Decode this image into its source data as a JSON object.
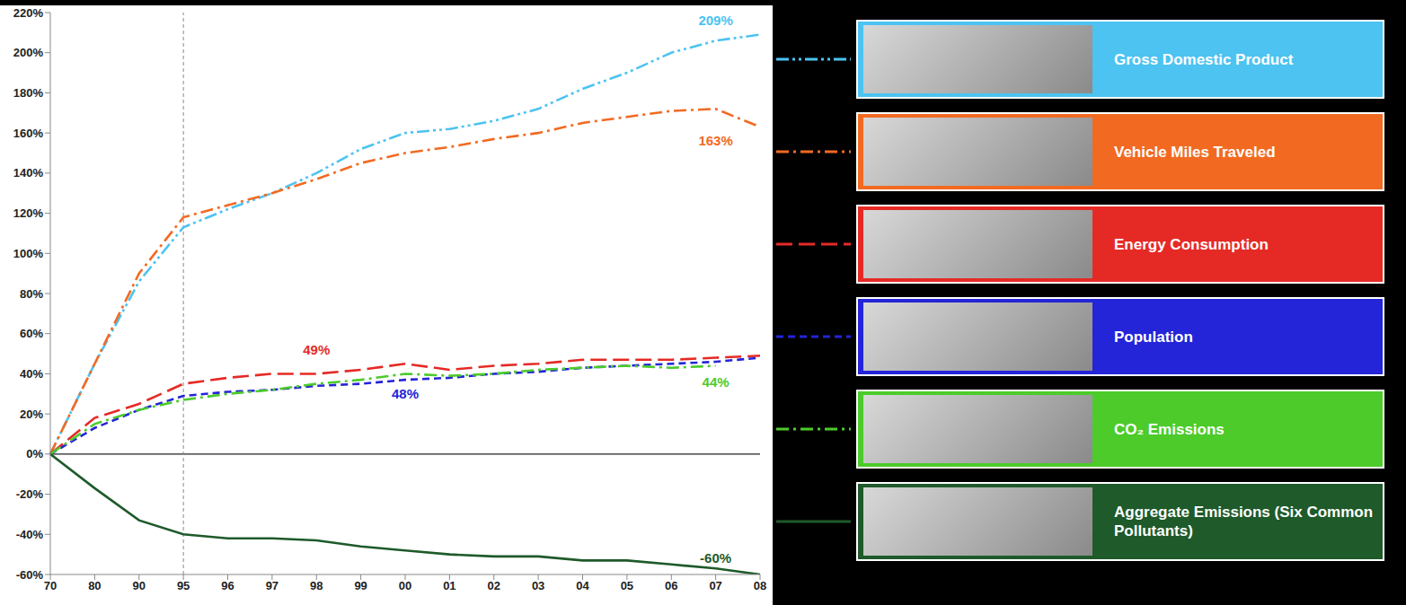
{
  "chart_data": {
    "type": "line",
    "categories": [
      "70",
      "80",
      "90",
      "95",
      "96",
      "97",
      "98",
      "99",
      "00",
      "01",
      "02",
      "03",
      "04",
      "05",
      "06",
      "07",
      "08"
    ],
    "series": [
      {
        "name": "Gross Domestic Product",
        "color": "#4cc3f1",
        "line_style": "dashdotdot",
        "values": [
          0,
          45,
          86,
          113,
          122,
          130,
          140,
          152,
          160,
          162,
          166,
          172,
          182,
          190,
          200,
          206,
          209
        ]
      },
      {
        "name": "Vehicle Miles Traveled",
        "color": "#f26a22",
        "line_style": "dashdot",
        "values": [
          0,
          45,
          90,
          118,
          124,
          130,
          137,
          145,
          150,
          153,
          157,
          160,
          165,
          168,
          171,
          172,
          163
        ]
      },
      {
        "name": "Energy Consumption",
        "color": "#e52a26",
        "line_style": "longdash",
        "values": [
          0,
          18,
          25,
          35,
          38,
          40,
          40,
          42,
          45,
          42,
          44,
          45,
          47,
          47,
          47,
          48,
          49
        ]
      },
      {
        "name": "Population",
        "color": "#2424d8",
        "line_style": "dash",
        "values": [
          0,
          13,
          22,
          29,
          31,
          32,
          34,
          35,
          37,
          38,
          40,
          41,
          43,
          44,
          45,
          46,
          48
        ]
      },
      {
        "name": "CO₂ Emissions",
        "color": "#4ccb2b",
        "line_style": "dashdot",
        "values": [
          0,
          15,
          22,
          27,
          30,
          32,
          35,
          37,
          40,
          39,
          40,
          42,
          43,
          44,
          43,
          44,
          null
        ]
      },
      {
        "name": "Aggregate Emissions (Six Common Pollutants)",
        "color": "#1e5a2a",
        "line_style": "solid",
        "values": [
          0,
          -17,
          -33,
          -40,
          -42,
          -42,
          -43,
          -46,
          -48,
          -50,
          -51,
          -51,
          -53,
          -53,
          -55,
          -57,
          -60
        ]
      }
    ],
    "ylim": [
      -60,
      220
    ],
    "yticks": [
      {
        "value": -60,
        "label": "-60%"
      },
      {
        "value": -40,
        "label": "-40%"
      },
      {
        "value": -20,
        "label": "-20%"
      },
      {
        "value": 0,
        "label": "0%"
      },
      {
        "value": 20,
        "label": "20%"
      },
      {
        "value": 40,
        "label": "40%"
      },
      {
        "value": 60,
        "label": "60%"
      },
      {
        "value": 80,
        "label": "80%"
      },
      {
        "value": 100,
        "label": "100%"
      },
      {
        "value": 120,
        "label": "120%"
      },
      {
        "value": 140,
        "label": "140%"
      },
      {
        "value": 160,
        "label": "160%"
      },
      {
        "value": 180,
        "label": "180%"
      },
      {
        "value": 200,
        "label": "200%"
      },
      {
        "value": 220,
        "label": "220%"
      }
    ],
    "reference_x": "95",
    "reference_y": 0,
    "annotations": [
      {
        "text": "209%",
        "series": "Gross Domestic Product",
        "x": "07",
        "y": 216
      },
      {
        "text": "163%",
        "series": "Vehicle Miles Traveled",
        "x": "07",
        "y": 156
      },
      {
        "text": "49%",
        "series": "Energy Consumption",
        "x": "98",
        "y": 52
      },
      {
        "text": "48%",
        "series": "Population",
        "x": "00",
        "y": 30
      },
      {
        "text": "44%",
        "series": "CO₂ Emissions",
        "x": "07",
        "y": 36
      },
      {
        "text": "-60%",
        "series": "Aggregate Emissions (Six Common Pollutants)",
        "x": "07",
        "y": -52
      }
    ],
    "grid": false,
    "legend": "right"
  }
}
